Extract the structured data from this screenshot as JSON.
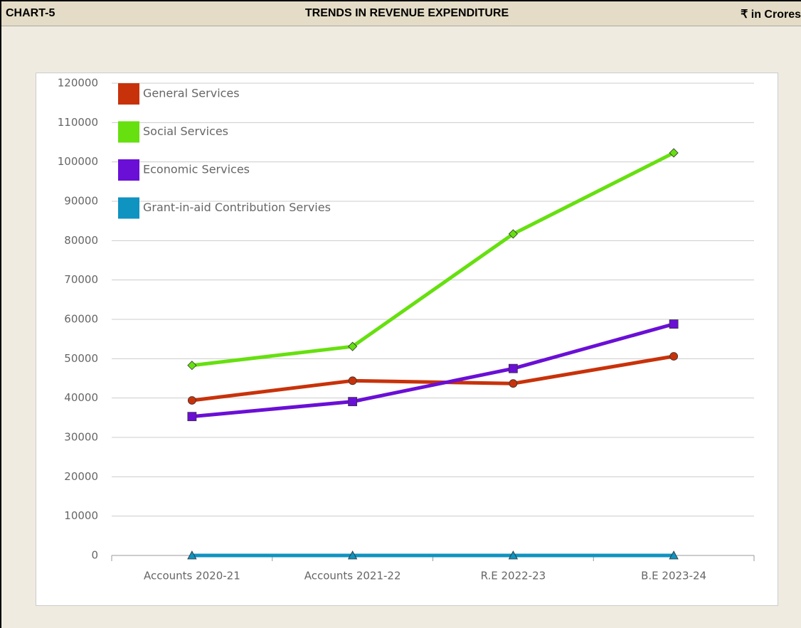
{
  "header": {
    "label": "CHART-5",
    "title": "TRENDS IN REVENUE EXPENDITURE",
    "unit": "₹ in Crores"
  },
  "chart_data": {
    "type": "line",
    "categories": [
      "Accounts 2020-21",
      "Accounts 2021-22",
      "R.E 2022-23",
      "B.E 2023-24"
    ],
    "series": [
      {
        "name": "General Services",
        "color": "#c8320a",
        "marker": "circle",
        "values": [
          39400,
          44400,
          43700,
          50600
        ]
      },
      {
        "name": "Social Services",
        "color": "#66e00f",
        "marker": "diamond",
        "values": [
          48300,
          53100,
          81700,
          102300
        ]
      },
      {
        "name": "Economic Services",
        "color": "#6a0fd6",
        "marker": "square",
        "values": [
          35300,
          39100,
          47500,
          58800
        ]
      },
      {
        "name": "Grant-in-aid Contribution Servies",
        "color": "#0f93c0",
        "marker": "triangle",
        "values": [
          0,
          0,
          0,
          0
        ]
      }
    ],
    "ylim": [
      0,
      120000
    ],
    "yticks": [
      0,
      10000,
      20000,
      30000,
      40000,
      50000,
      60000,
      70000,
      80000,
      90000,
      100000,
      110000,
      120000
    ],
    "grid": true,
    "legend": "top-left"
  }
}
